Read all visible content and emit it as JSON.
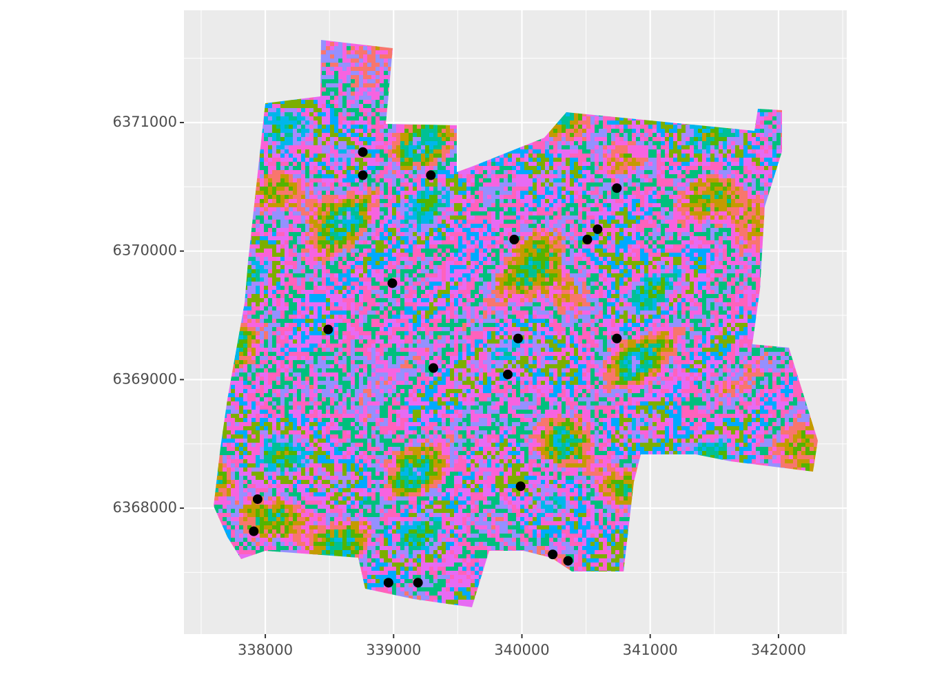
{
  "chart_data": {
    "type": "scatter",
    "x": [
      338760,
      338760,
      339290,
      340740,
      340590,
      340510,
      339940,
      338990,
      338490,
      339970,
      340740,
      339310,
      339890,
      339990,
      337940,
      337910,
      340240,
      340360,
      338960,
      339190
    ],
    "values": [
      6370770,
      6370590,
      6370590,
      6370490,
      6370170,
      6370090,
      6370090,
      6369750,
      6369390,
      6369320,
      6369320,
      6369090,
      6369040,
      6368170,
      6368070,
      6367820,
      6367640,
      6367590,
      6367420,
      6367420
    ],
    "color": "#000000",
    "xlim": [
      337366,
      342532
    ],
    "ylim": [
      6367020,
      6371873
    ],
    "xticks": [
      338000,
      339000,
      340000,
      341000,
      342000
    ],
    "yticks": [
      6368000,
      6369000,
      6370000,
      6371000
    ],
    "grid": true
  }
}
